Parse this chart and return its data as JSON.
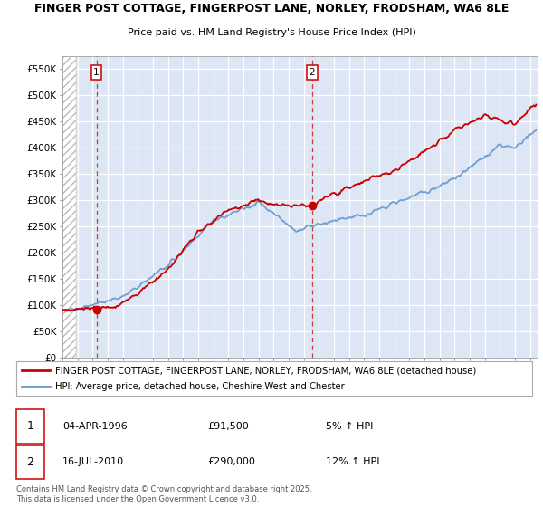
{
  "title": "FINGER POST COTTAGE, FINGERPOST LANE, NORLEY, FRODSHAM, WA6 8LE",
  "subtitle": "Price paid vs. HM Land Registry's House Price Index (HPI)",
  "ylim": [
    0,
    575000
  ],
  "yticks": [
    0,
    50000,
    100000,
    150000,
    200000,
    250000,
    300000,
    350000,
    400000,
    450000,
    500000,
    550000
  ],
  "ytick_labels": [
    "£0",
    "£50K",
    "£100K",
    "£150K",
    "£200K",
    "£250K",
    "£300K",
    "£350K",
    "£400K",
    "£450K",
    "£500K",
    "£550K"
  ],
  "sale1_date": 1996.25,
  "sale1_price": 91500,
  "sale2_date": 2010.54,
  "sale2_price": 290000,
  "legend_line1": "FINGER POST COTTAGE, FINGERPOST LANE, NORLEY, FRODSHAM, WA6 8LE (detached house)",
  "legend_line2": "HPI: Average price, detached house, Cheshire West and Chester",
  "footer": "Contains HM Land Registry data © Crown copyright and database right 2025.\nThis data is licensed under the Open Government Licence v3.0.",
  "line_color_red": "#cc0000",
  "line_color_blue": "#6699cc",
  "plot_bg_color": "#dce6f5",
  "hatch_xlim_start": 1994.0,
  "hatch_xlim_end": 1994.9,
  "xmin": 1994.0,
  "xmax": 2025.5
}
